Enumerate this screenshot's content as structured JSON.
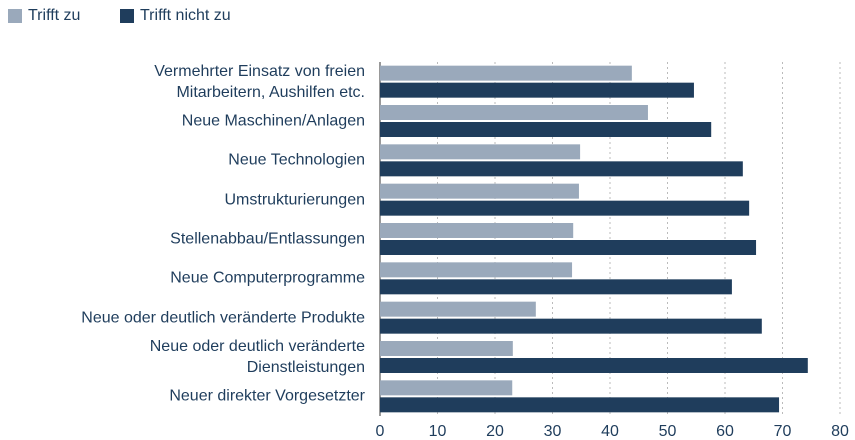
{
  "chart_data": {
    "type": "hbar",
    "categories": [
      "Vermehrter Einsatz von freien\nMitarbeitern, Aushilfen etc.",
      "Neue Maschinen/Anlagen",
      "Neue Technologien",
      "Umstrukturierungen",
      "Stellenabbau/Entlassungen",
      "Neue Computerprogramme",
      "Neue oder deutlich veränderte Produkte",
      "Neue oder deutlich veränderte\nDienstleistungen",
      "Neuer direkter Vorgesetzter"
    ],
    "series": [
      {
        "name": "Trifft zu",
        "color": "#9aa9bb",
        "values": [
          43.8,
          46.6,
          34.8,
          34.6,
          33.6,
          33.4,
          27.1,
          23.1,
          23.0
        ]
      },
      {
        "name": "Trifft nicht zu",
        "color": "#1f3d5c",
        "values": [
          54.6,
          57.6,
          63.1,
          64.2,
          65.4,
          61.2,
          66.4,
          74.4,
          69.4
        ]
      }
    ],
    "xlim": [
      0,
      80
    ],
    "xticks": [
      0,
      10,
      20,
      30,
      40,
      50,
      60,
      70,
      80
    ],
    "grid": true,
    "legend": "top-left"
  }
}
